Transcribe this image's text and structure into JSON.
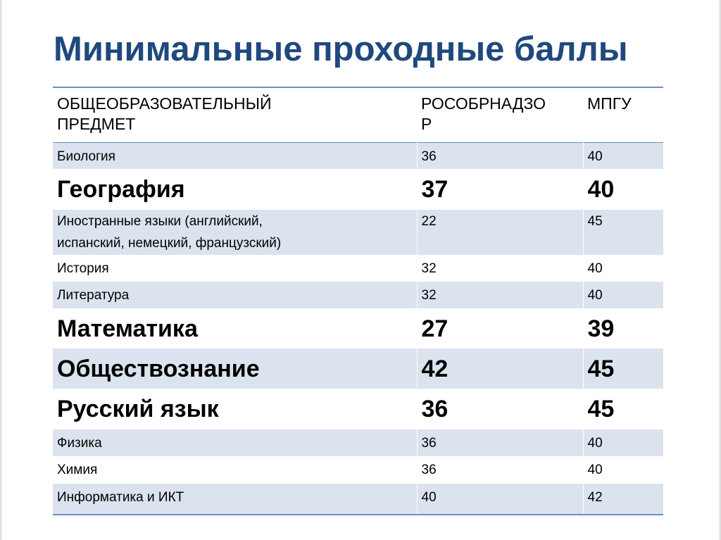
{
  "title": "Минимальные проходные баллы",
  "table": {
    "columns": [
      "ОБЩЕОБРАЗОВАТЕЛЬНЫЙ ПРЕДМЕТ",
      "РОСОБРНАДЗОР",
      "МПГУ"
    ],
    "column_header_lines": [
      [
        "ОБЩЕОБРАЗОВАТЕЛЬНЫЙ",
        "ПРЕДМЕТ"
      ],
      [
        "РОСОБРНАДЗО",
        "Р"
      ],
      [
        "МПГУ"
      ]
    ],
    "rows": [
      {
        "subject": "Биология",
        "rosobrnadzor": "36",
        "mpgu": "40",
        "emphasized": false
      },
      {
        "subject": "География",
        "rosobrnadzor": "37",
        "mpgu": "40",
        "emphasized": true
      },
      {
        "subject": "Иностранные языки (английский, испанский, немецкий, французский)",
        "subject_lines": [
          "Иностранные языки (английский,",
          "испанский, немецкий, французский)"
        ],
        "rosobrnadzor": "22",
        "mpgu": "45",
        "emphasized": false
      },
      {
        "subject": "История",
        "rosobrnadzor": "32",
        "mpgu": "40",
        "emphasized": false
      },
      {
        "subject": "Литература",
        "rosobrnadzor": "32",
        "mpgu": "40",
        "emphasized": false
      },
      {
        "subject": "Математика",
        "rosobrnadzor": "27",
        "mpgu": "39",
        "emphasized": true
      },
      {
        "subject": "Обществознание",
        "rosobrnadzor": "42",
        "mpgu": "45",
        "emphasized": true
      },
      {
        "subject": "Русский язык",
        "rosobrnadzor": "36",
        "mpgu": "45",
        "emphasized": true
      },
      {
        "subject": "Физика",
        "rosobrnadzor": "36",
        "mpgu": "40",
        "emphasized": false
      },
      {
        "subject": "Химия",
        "rosobrnadzor": "36",
        "mpgu": "40",
        "emphasized": false
      },
      {
        "subject": "Информатика и ИКТ",
        "rosobrnadzor": "40",
        "mpgu": "42",
        "emphasized": false
      }
    ]
  },
  "colors": {
    "title": "#1f497d",
    "band": "#dbe3ee",
    "rule": "#6f8fbf"
  }
}
